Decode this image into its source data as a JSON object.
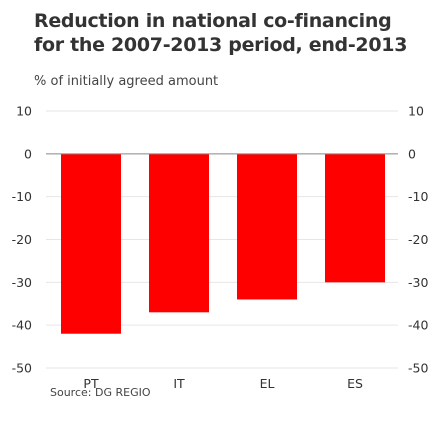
{
  "title": "Reduction in national co-financing for the 2007-2013 period, end-2013",
  "subtitle": "% of initially agreed amount",
  "source": "Source: DG REGIO",
  "chart_data": {
    "type": "bar",
    "categories": [
      "PT",
      "IT",
      "EL",
      "ES"
    ],
    "values": [
      -42,
      -37,
      -34,
      -30
    ],
    "title": "Reduction in national co-financing for the 2007-2013 period, end-2013",
    "ylabel": "% of initially agreed amount",
    "ylim": [
      -50,
      10
    ],
    "yticks": [
      10,
      0,
      -10,
      -20,
      -30,
      -40,
      -50
    ],
    "grid": true,
    "bar_color": "#ff0000",
    "grid_color": "#e6e6e6",
    "axis_color": "#888888",
    "legend": "none"
  }
}
